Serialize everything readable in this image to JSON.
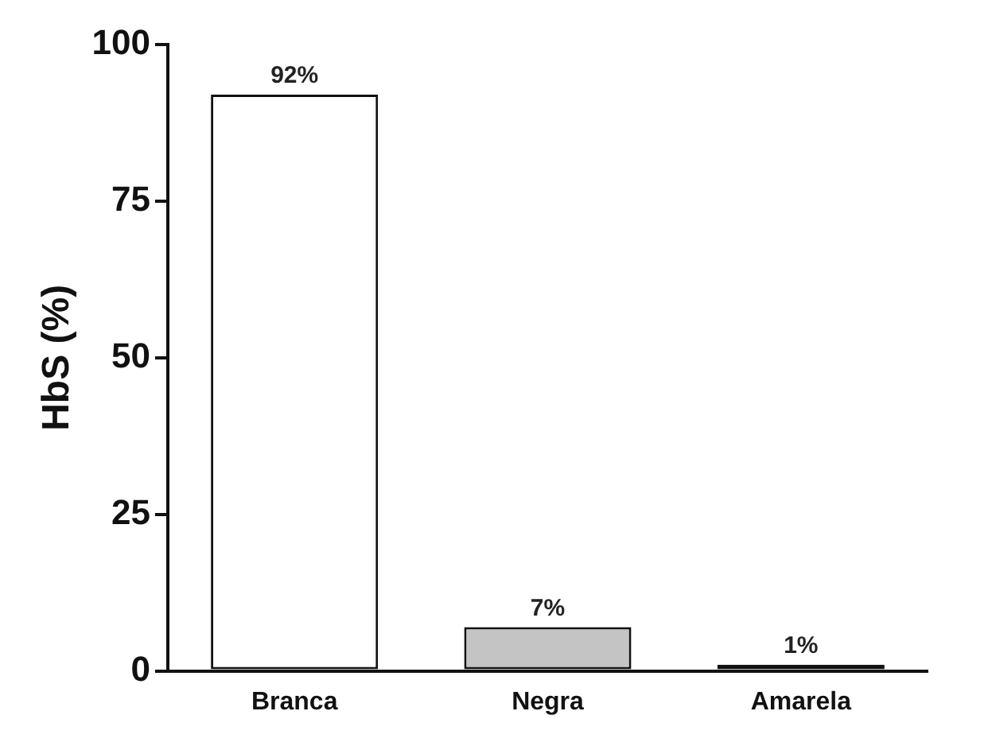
{
  "chart_data": {
    "type": "bar",
    "ylabel": "HbS (%)",
    "categories": [
      "Branca",
      "Negra",
      "Amarela"
    ],
    "values": [
      92,
      7,
      1
    ],
    "colors": [
      "#ffffff",
      "#c4c4c4",
      "#111111"
    ],
    "value_labels": [
      "92%",
      "7%",
      "1%"
    ],
    "ylim": [
      0,
      100
    ],
    "yticks": [
      0,
      25,
      50,
      75,
      100
    ],
    "grid": false,
    "legend": false
  }
}
